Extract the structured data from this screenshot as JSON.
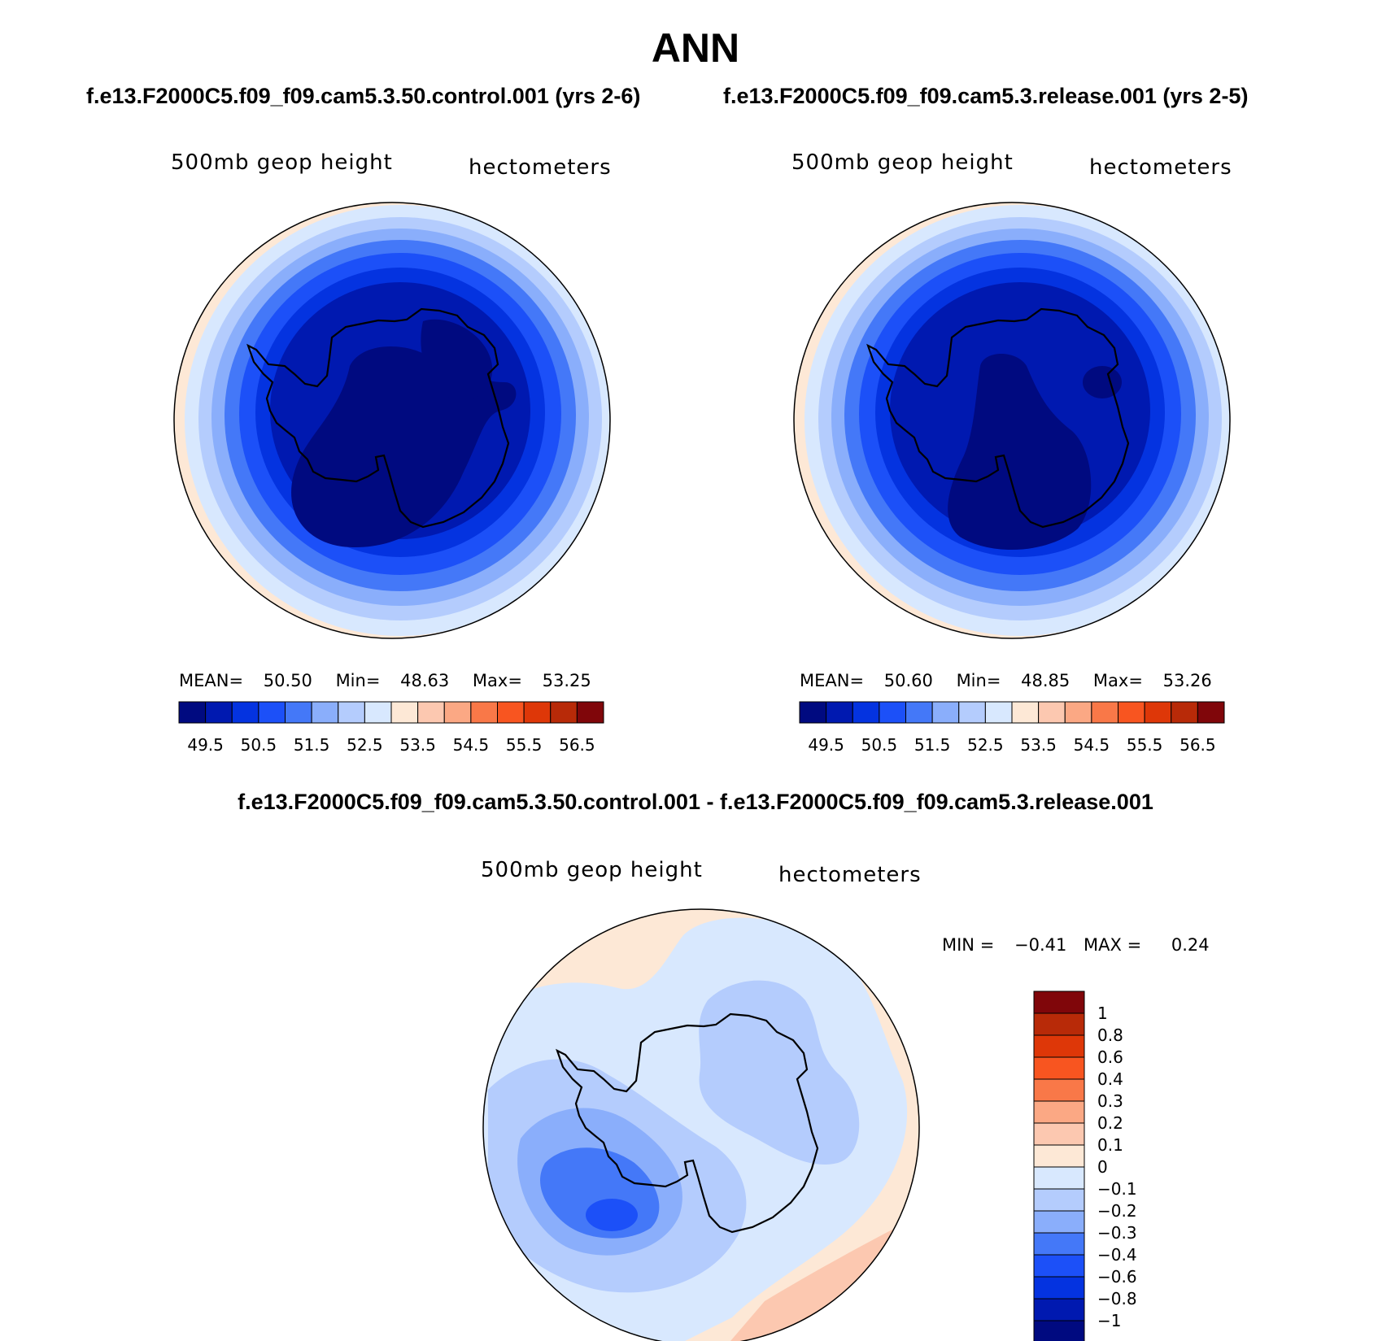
{
  "page_title": "ANN",
  "left_panel": {
    "case_title": "f.e13.F2000C5.f09_f09.cam5.3.50.control.001 (yrs 2-6)",
    "variable_label": "500mb  geop  height",
    "units_label": "hectometers",
    "stats": {
      "mean_label": "MEAN=",
      "mean": "50.50",
      "min_label": "Min=",
      "min": "48.63",
      "max_label": "Max=",
      "max": "53.25"
    }
  },
  "right_panel": {
    "case_title": "f.e13.F2000C5.f09_f09.cam5.3.release.001 (yrs 2-5)",
    "variable_label": "500mb  geop  height",
    "units_label": "hectometers",
    "stats": {
      "mean_label": "MEAN=",
      "mean": "50.60",
      "min_label": "Min=",
      "min": "48.85",
      "max_label": "Max=",
      "max": "53.26"
    }
  },
  "diff_panel": {
    "case_title": "f.e13.F2000C5.f09_f09.cam5.3.50.control.001 - f.e13.F2000C5.f09_f09.cam5.3.release.001",
    "variable_label": "500mb  geop  height",
    "units_label": "hectometers",
    "stats": {
      "min_label": "MIN =",
      "min": "−0.41",
      "max_label": "MAX =",
      "max": "0.24"
    }
  },
  "colorbar_top": {
    "colors": [
      "#000a80",
      "#0019b0",
      "#0433e0",
      "#1c50f8",
      "#4478f8",
      "#8aaefb",
      "#b4ccfd",
      "#d8e8fe",
      "#fde8d6",
      "#fcc8b0",
      "#fba884",
      "#f97848",
      "#f85520",
      "#de3708",
      "#b82a08",
      "#80060a"
    ],
    "tick_labels": [
      "49.5",
      "50.5",
      "51.5",
      "52.5",
      "53.5",
      "54.5",
      "55.5",
      "56.5"
    ]
  },
  "colorbar_diff": {
    "colors": [
      "#000a80",
      "#0019b0",
      "#0433e0",
      "#1c50f8",
      "#4478f8",
      "#8aaefb",
      "#b4ccfd",
      "#d8e8fe",
      "#fde8d6",
      "#fcc8b0",
      "#fba884",
      "#f97848",
      "#f85520",
      "#de3708",
      "#b82a08",
      "#80060a"
    ],
    "tick_labels": [
      "1",
      "0.8",
      "0.6",
      "0.4",
      "0.3",
      "0.2",
      "0.1",
      "0",
      "−0.1",
      "−0.2",
      "−0.3",
      "−0.4",
      "−0.6",
      "−0.8",
      "−1"
    ]
  }
}
